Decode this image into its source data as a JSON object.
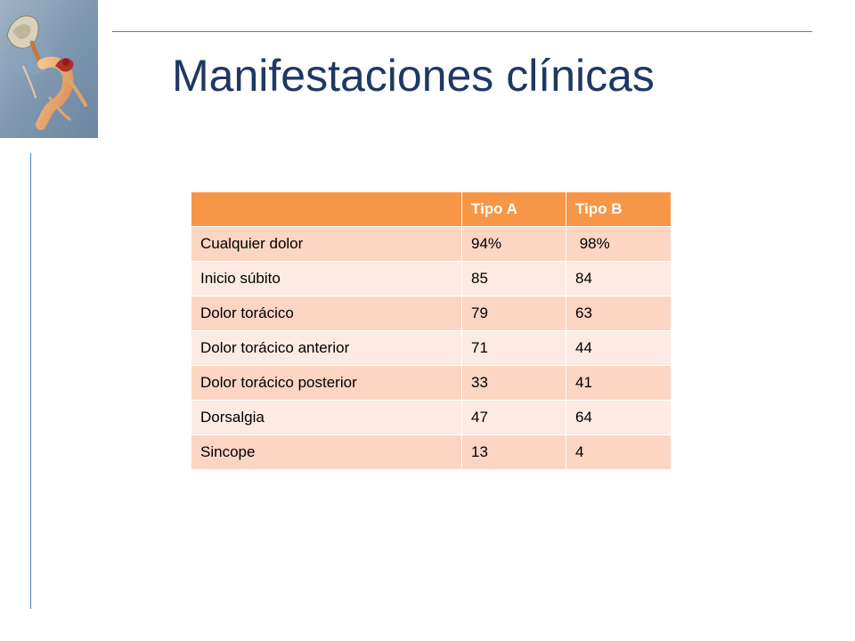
{
  "slide": {
    "title": "Manifestaciones clínicas"
  },
  "table": {
    "headers": [
      "",
      "Tipo A",
      "Tipo B"
    ],
    "rows": [
      [
        "Cualquier dolor",
        "94%",
        " 98%"
      ],
      [
        "Inicio súbito",
        "85",
        "84"
      ],
      [
        "Dolor torácico",
        "79",
        "63"
      ],
      [
        "Dolor torácico anterior",
        "71",
        "44"
      ],
      [
        "Dolor torácico posterior",
        "33",
        "41"
      ],
      [
        "Dorsalgia",
        "47",
        "64"
      ],
      [
        "Sincope",
        "13",
        "4"
      ]
    ]
  },
  "colors": {
    "title": "#1f3864",
    "accent_line": "#4f81bd",
    "header_fill": "#f79646",
    "row_fill_dark": "#fcd5c3",
    "row_fill_light": "#fdeae2"
  },
  "images": {
    "corner_illustration": "anatomical-illustration-aorta"
  }
}
